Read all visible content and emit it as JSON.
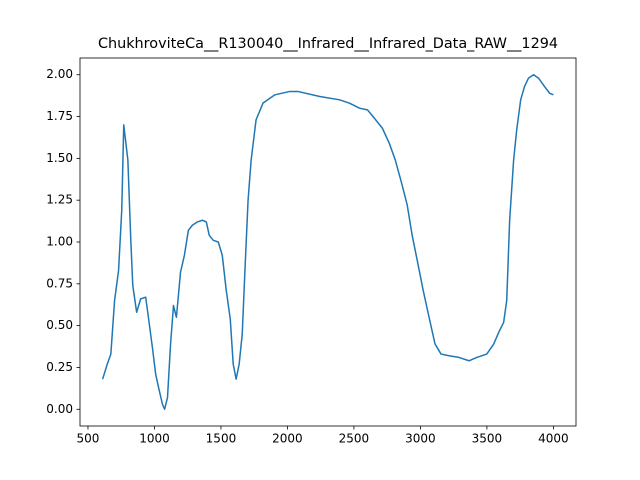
{
  "chart_data": {
    "type": "line",
    "title": "ChukhroviteCa__R130040__Infrared__Infrared_Data_RAW__1294",
    "x": [
      610,
      645,
      672,
      700,
      730,
      754,
      769,
      800,
      822,
      837,
      866,
      896,
      934,
      956,
      986,
      1009,
      1031,
      1060,
      1076,
      1098,
      1121,
      1143,
      1165,
      1196,
      1225,
      1255,
      1285,
      1323,
      1360,
      1390,
      1412,
      1442,
      1480,
      1510,
      1540,
      1570,
      1592,
      1614,
      1637,
      1660,
      1682,
      1704,
      1727,
      1764,
      1816,
      1906,
      2018,
      2078,
      2243,
      2392,
      2467,
      2542,
      2602,
      2654,
      2714,
      2766,
      2811,
      2856,
      2901,
      2938,
      2976,
      3021,
      3065,
      3110,
      3155,
      3215,
      3290,
      3365,
      3424,
      3499,
      3551,
      3589,
      3626,
      3649,
      3671,
      3701,
      3724,
      3754,
      3783,
      3813,
      3851,
      3888,
      3933,
      3971,
      4000
    ],
    "series": [
      {
        "color": "#1f77b4",
        "values": [
          0.18,
          0.27,
          0.33,
          0.65,
          0.83,
          1.19,
          1.7,
          1.49,
          1.01,
          0.74,
          0.58,
          0.66,
          0.67,
          0.54,
          0.36,
          0.21,
          0.13,
          0.03,
          0.0,
          0.07,
          0.39,
          0.62,
          0.55,
          0.82,
          0.92,
          1.07,
          1.1,
          1.12,
          1.13,
          1.12,
          1.04,
          1.01,
          1.0,
          0.92,
          0.71,
          0.54,
          0.27,
          0.18,
          0.27,
          0.45,
          0.86,
          1.25,
          1.49,
          1.73,
          1.83,
          1.88,
          1.9,
          1.9,
          1.87,
          1.85,
          1.83,
          1.8,
          1.79,
          1.74,
          1.68,
          1.59,
          1.49,
          1.36,
          1.22,
          1.04,
          0.89,
          0.71,
          0.55,
          0.39,
          0.33,
          0.32,
          0.31,
          0.29,
          0.31,
          0.33,
          0.39,
          0.46,
          0.52,
          0.65,
          1.13,
          1.49,
          1.67,
          1.85,
          1.93,
          1.98,
          2.0,
          1.98,
          1.93,
          1.89,
          1.88
        ]
      }
    ],
    "xlim": [
      440,
      4170
    ],
    "ylim": [
      -0.1,
      2.1
    ],
    "xticks": [
      500,
      1000,
      1500,
      2000,
      2500,
      3000,
      3500,
      4000
    ],
    "yticks": [
      {
        "value": 0,
        "label": "0.00"
      },
      {
        "value": 0.25,
        "label": "0.25"
      },
      {
        "value": 0.5,
        "label": "0.50"
      },
      {
        "value": 0.75,
        "label": "0.75"
      },
      {
        "value": 1,
        "label": "1.00"
      },
      {
        "value": 1.25,
        "label": "1.25"
      },
      {
        "value": 1.5,
        "label": "1.50"
      },
      {
        "value": 1.75,
        "label": "1.75"
      },
      {
        "value": 2,
        "label": "2.00"
      }
    ],
    "grid": false
  }
}
